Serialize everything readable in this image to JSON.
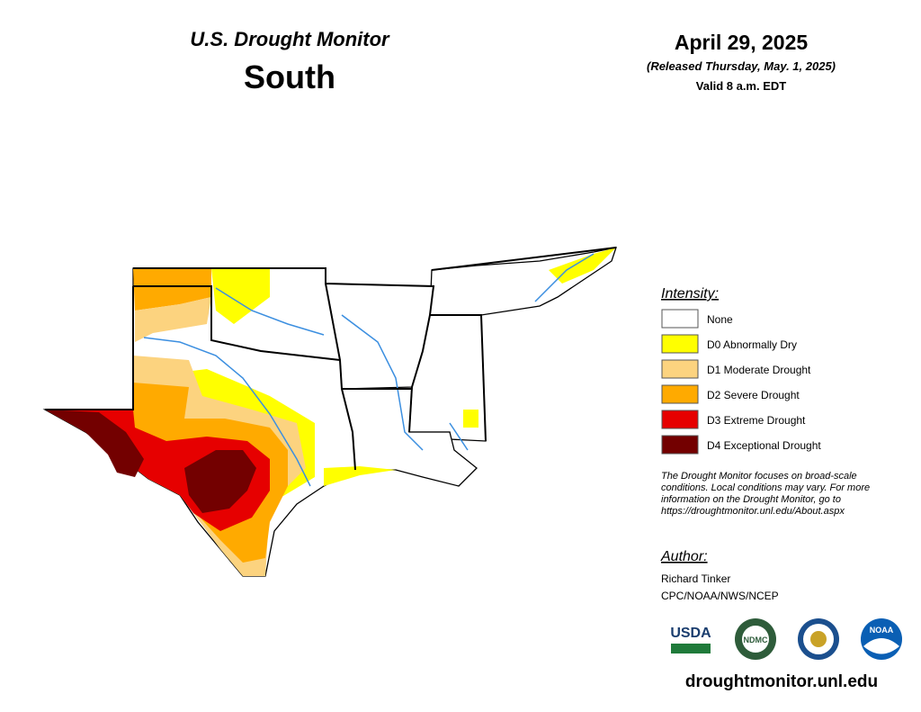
{
  "header": {
    "title": "U.S. Drought Monitor",
    "region": "South",
    "date": "April 29, 2025",
    "released": "(Released Thursday, May. 1, 2025)",
    "valid": "Valid 8 a.m. EDT"
  },
  "legend": {
    "title": "Intensity:",
    "items": [
      {
        "label": "None",
        "color": "#ffffff"
      },
      {
        "label": "D0 Abnormally Dry",
        "color": "#ffff00"
      },
      {
        "label": "D1 Moderate Drought",
        "color": "#fcd37f"
      },
      {
        "label": "D2 Severe Drought",
        "color": "#ffaa00"
      },
      {
        "label": "D3 Extreme Drought",
        "color": "#e60000"
      },
      {
        "label": "D4 Exceptional Drought",
        "color": "#730000"
      }
    ]
  },
  "note": [
    "The Drought Monitor focuses on broad-scale",
    "conditions. Local conditions may vary. For more",
    "information on the Drought Monitor, go to",
    "https://droughtmonitor.unl.edu/About.aspx"
  ],
  "author": {
    "title": "Author:",
    "name": "Richard Tinker",
    "org": "CPC/NOAA/NWS/NCEP"
  },
  "logos": [
    "USDA",
    "NDMC",
    "NOAA"
  ],
  "url": "droughtmonitor.unl.edu"
}
